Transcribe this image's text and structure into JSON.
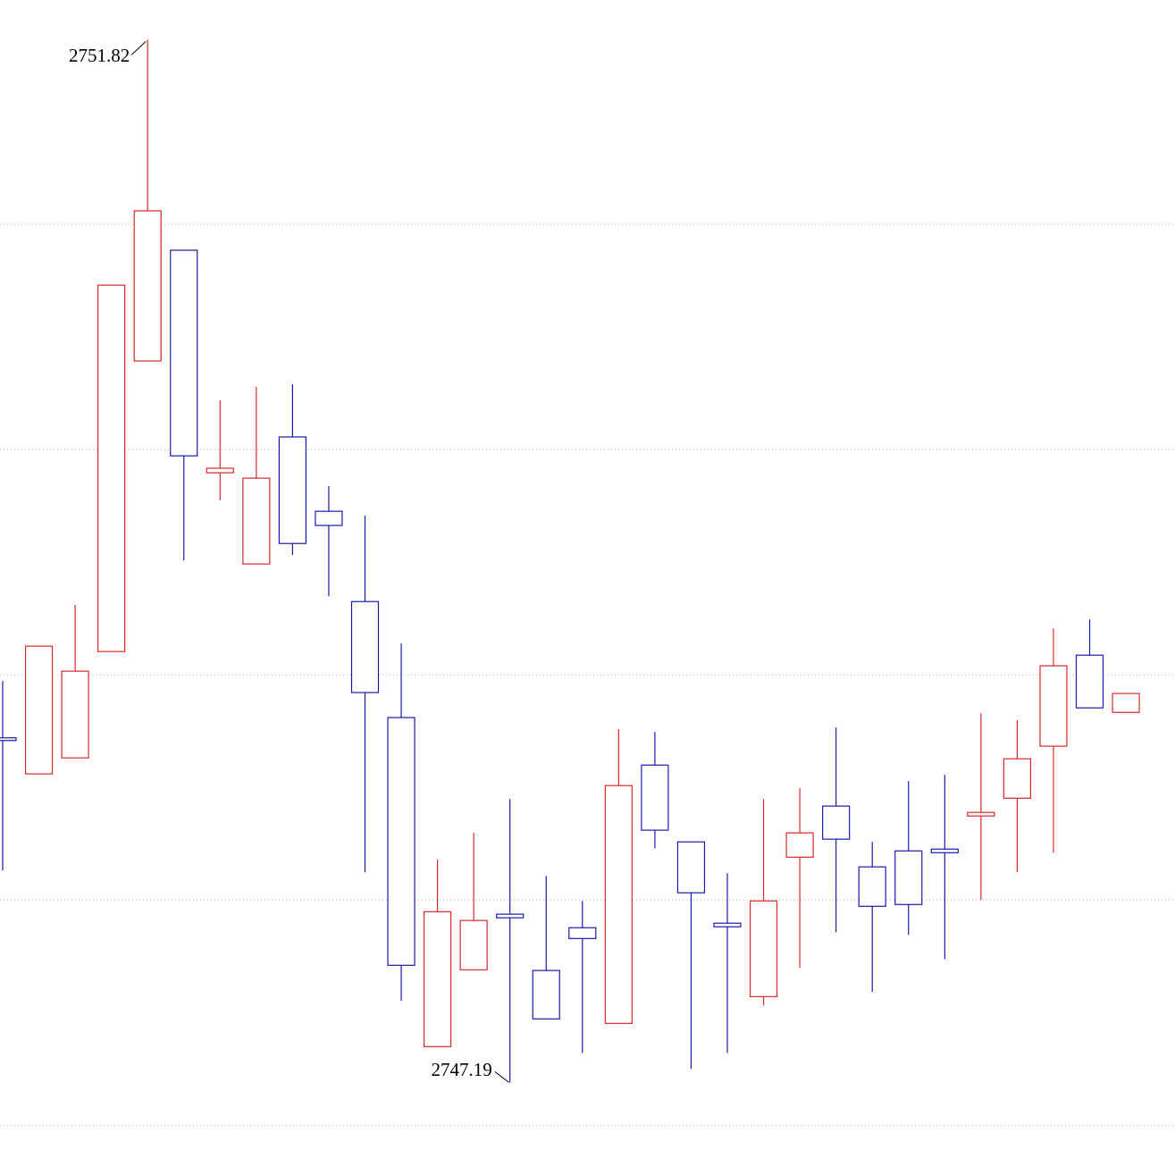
{
  "chart_data": {
    "type": "candlestick",
    "up_color": "#d42a2a",
    "down_color": "#1a1aa8",
    "ylim": [
      2746.89,
      2751.996
    ],
    "yticks": [
      2747,
      2748,
      2749,
      2750,
      2751
    ],
    "grid": true,
    "open": [
      2748.72,
      2748.56,
      2748.631,
      2749.103,
      2750.393,
      2750.885,
      2749.897,
      2749.492,
      2750.056,
      2749.726,
      2749.325,
      2748.81,
      2747.349,
      2747.69,
      2747.937,
      2747.687,
      2747.877,
      2747.452,
      2748.599,
      2748.258,
      2747.897,
      2747.571,
      2748.19,
      2748.417,
      2748.147,
      2748.218,
      2748.226,
      2748.373,
      2748.452,
      2748.683,
      2749.087,
      2748.833
    ],
    "high": [
      2748.972,
      2749.127,
      2749.31,
      2750.73,
      2751.82,
      2750.885,
      2750.218,
      2750.278,
      2750.29,
      2749.837,
      2749.706,
      2749.139,
      2748.179,
      2748.298,
      2748.448,
      2748.107,
      2747.996,
      2748.758,
      2748.746,
      2748.258,
      2748.119,
      2748.448,
      2748.496,
      2748.766,
      2748.258,
      2748.528,
      2748.556,
      2748.829,
      2748.798,
      2749.206,
      2749.246,
      2748.917
    ],
    "low": [
      2748.131,
      2748.56,
      2748.631,
      2749.103,
      2750.393,
      2749.508,
      2749.774,
      2749.492,
      2749.532,
      2749.349,
      2748.123,
      2747.552,
      2747.349,
      2747.69,
      2747.19,
      2747.472,
      2747.321,
      2747.452,
      2748.23,
      2747.25,
      2747.321,
      2747.532,
      2747.698,
      2747.857,
      2747.591,
      2747.845,
      2747.738,
      2748.0,
      2748.123,
      2748.21,
      2748.853,
      2748.833
    ],
    "close": [
      2748.71,
      2749.127,
      2749.016,
      2750.73,
      2751.06,
      2749.972,
      2749.917,
      2749.873,
      2749.583,
      2749.663,
      2748.921,
      2747.71,
      2747.948,
      2747.909,
      2747.921,
      2747.472,
      2747.829,
      2748.508,
      2748.31,
      2748.032,
      2747.881,
      2747.996,
      2748.298,
      2748.27,
      2747.972,
      2747.98,
      2748.21,
      2748.389,
      2748.627,
      2749.04,
      2748.853,
      2748.917
    ]
  }
}
